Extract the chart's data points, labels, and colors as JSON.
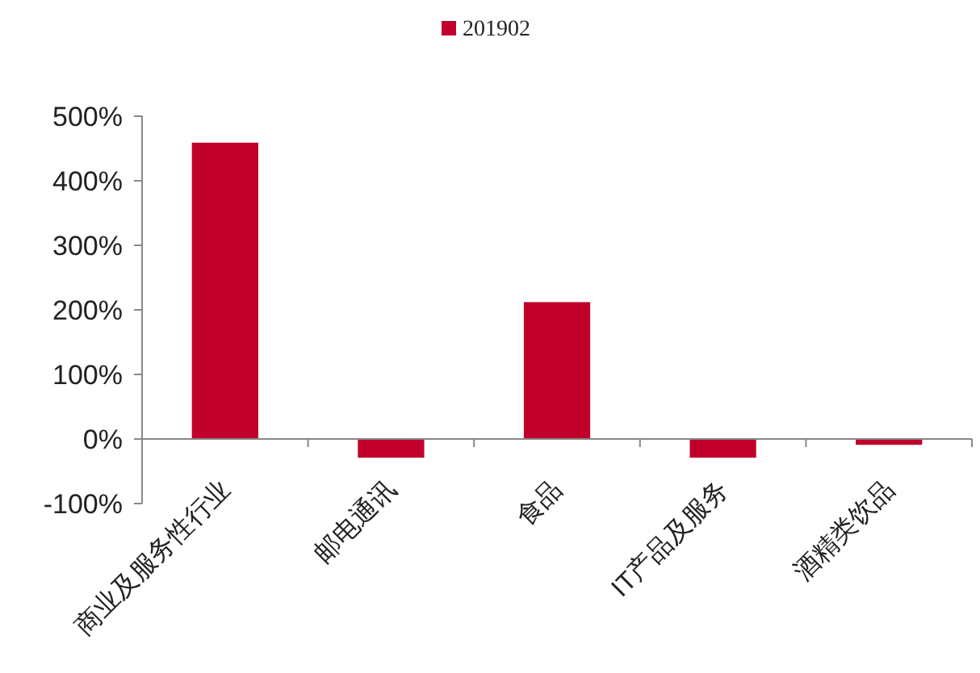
{
  "chart_data": {
    "type": "bar",
    "categories": [
      "商业及服务性行业",
      "邮电通讯",
      "食品",
      "IT产品及服务",
      "酒精类饮品"
    ],
    "series": [
      {
        "name": "201902",
        "color": "#c0002b",
        "values": [
          459,
          -29,
          212,
          -29,
          -9
        ]
      }
    ],
    "ylim": [
      -100,
      500
    ],
    "yticks": [
      {
        "value": -100,
        "label": "-100%"
      },
      {
        "value": 0,
        "label": "0%"
      },
      {
        "value": 100,
        "label": "100%"
      },
      {
        "value": 200,
        "label": "200%"
      },
      {
        "value": 300,
        "label": "300%"
      },
      {
        "value": 400,
        "label": "400%"
      },
      {
        "value": 500,
        "label": "500%"
      }
    ],
    "legend": "top",
    "grid": false
  }
}
